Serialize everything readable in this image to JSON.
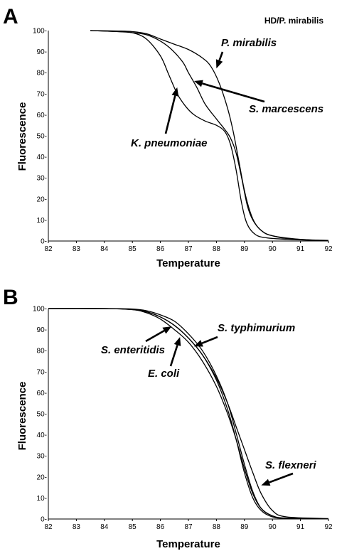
{
  "chart_data": [
    {
      "panel": "A",
      "type": "line",
      "title": "HD/P. mirabilis",
      "xlabel": "Temperature",
      "ylabel": "Fluorescence",
      "xlim": [
        82,
        92
      ],
      "ylim": [
        0,
        100
      ],
      "xticks": [
        "82",
        "83",
        "84",
        "85",
        "86",
        "87",
        "88",
        "89",
        "90",
        "91",
        "92"
      ],
      "yticks": [
        "0-",
        "10-",
        "20-",
        "30-",
        "40-",
        "50-",
        "60-",
        "70-",
        "80-",
        "90-",
        "100-"
      ],
      "series": [
        {
          "name": "K. pneumoniae",
          "x": [
            83.5,
            84.5,
            85.0,
            85.5,
            86.0,
            86.3,
            86.6,
            86.9,
            87.2,
            87.6,
            88.0,
            88.3,
            88.5,
            88.7,
            88.9,
            89.1,
            89.4,
            89.8,
            90.5,
            91.5,
            92.0
          ],
          "y": [
            100,
            99.5,
            99,
            96,
            88,
            79,
            70,
            64,
            60,
            57,
            55,
            52,
            46,
            34,
            18,
            8,
            3,
            1.5,
            0.8,
            0.3,
            0.2
          ]
        },
        {
          "name": "S. marcescens",
          "x": [
            83.5,
            84.5,
            85.0,
            85.5,
            86.0,
            86.4,
            86.8,
            87.0,
            87.3,
            87.6,
            88.0,
            88.3,
            88.5,
            88.7,
            88.9,
            89.1,
            89.3,
            89.6,
            90.0,
            91.0,
            92.0
          ],
          "y": [
            100,
            99.5,
            99,
            98,
            95,
            91,
            85,
            80,
            73,
            65,
            58,
            53,
            49,
            42,
            30,
            17,
            10,
            5,
            2.5,
            0.8,
            0.3
          ]
        },
        {
          "name": "P. mirabilis",
          "x": [
            83.5,
            84.5,
            85.0,
            85.5,
            86.0,
            86.5,
            87.0,
            87.5,
            87.8,
            88.1,
            88.4,
            88.6,
            88.8,
            89.0,
            89.2,
            89.4,
            89.7,
            90.0,
            90.5,
            91.5,
            92.0
          ],
          "y": [
            100,
            99.8,
            99.5,
            98.5,
            96,
            93.5,
            91,
            87,
            83,
            75,
            63,
            52,
            38,
            24,
            14,
            8,
            4,
            2.5,
            1.2,
            0.4,
            0.2
          ]
        }
      ],
      "annotations": [
        {
          "text": "P. mirabilis",
          "target": [
            88.0,
            82.0
          ]
        },
        {
          "text": "S. marcescens",
          "target": [
            87.2,
            76.0
          ]
        },
        {
          "text": "K. pneumoniae",
          "target": [
            86.6,
            73.0
          ]
        }
      ]
    },
    {
      "panel": "B",
      "type": "line",
      "title": "",
      "xlabel": "Temperature",
      "ylabel": "Fluorescence",
      "xlim": [
        82,
        92
      ],
      "ylim": [
        0,
        100
      ],
      "xticks": [
        "82",
        "83",
        "84",
        "85",
        "86",
        "87",
        "88",
        "89",
        "90",
        "91",
        "92"
      ],
      "yticks": [
        "0-",
        "10-",
        "20-",
        "30-",
        "40-",
        "50-",
        "60-",
        "70-",
        "80-",
        "90-",
        "100-"
      ],
      "series": [
        {
          "name": "S. enteritidis",
          "x": [
            82.0,
            84.0,
            85.0,
            85.5,
            86.0,
            86.5,
            87.0,
            87.5,
            88.0,
            88.4,
            88.7,
            89.0,
            89.3,
            89.6,
            90.0,
            90.5,
            92.0
          ],
          "y": [
            100,
            100,
            99.5,
            98.5,
            96,
            92,
            86,
            78,
            66,
            52,
            38,
            22,
            10,
            4,
            1,
            0.3,
            0.1
          ]
        },
        {
          "name": "E. coli",
          "x": [
            82.0,
            84.0,
            85.0,
            85.5,
            86.0,
            86.5,
            87.0,
            87.5,
            88.0,
            88.4,
            88.7,
            89.0,
            89.3,
            89.6,
            90.0,
            90.5,
            92.0
          ],
          "y": [
            100,
            100,
            99.5,
            98,
            95,
            90,
            84,
            75,
            63,
            50,
            38,
            24,
            12,
            5,
            1.5,
            0.3,
            0.1
          ]
        },
        {
          "name": "S. typhimurium",
          "x": [
            82.0,
            84.0,
            85.0,
            85.5,
            86.0,
            86.5,
            87.0,
            87.5,
            88.0,
            88.4,
            88.7,
            89.0,
            89.3,
            89.6,
            90.0,
            90.5,
            92.0
          ],
          "y": [
            100,
            100,
            99.8,
            99,
            97,
            94,
            88,
            80,
            68,
            55,
            41,
            26,
            13,
            5,
            1.5,
            0.4,
            0.1
          ]
        },
        {
          "name": "S. flexneri",
          "x": [
            82.0,
            84.0,
            85.0,
            85.5,
            86.0,
            86.5,
            87.0,
            87.5,
            88.0,
            88.4,
            88.7,
            89.0,
            89.3,
            89.6,
            90.0,
            90.5,
            92.0
          ],
          "y": [
            100,
            100,
            99.6,
            98.5,
            96,
            92,
            86,
            78,
            67,
            55,
            44,
            33,
            22,
            12,
            4,
            1,
            0.2
          ]
        }
      ],
      "annotations": [
        {
          "text": "S. typhimurium",
          "target": [
            87.2,
            82.0
          ]
        },
        {
          "text": "S. enteritidis",
          "target": [
            86.4,
            91.5
          ]
        },
        {
          "text": "E. coli",
          "target": [
            86.7,
            86.5
          ]
        },
        {
          "text": "S. flexneri",
          "target": [
            89.6,
            16.0
          ]
        }
      ]
    }
  ],
  "labels": {
    "panel_a": "A",
    "panel_b": "B"
  }
}
